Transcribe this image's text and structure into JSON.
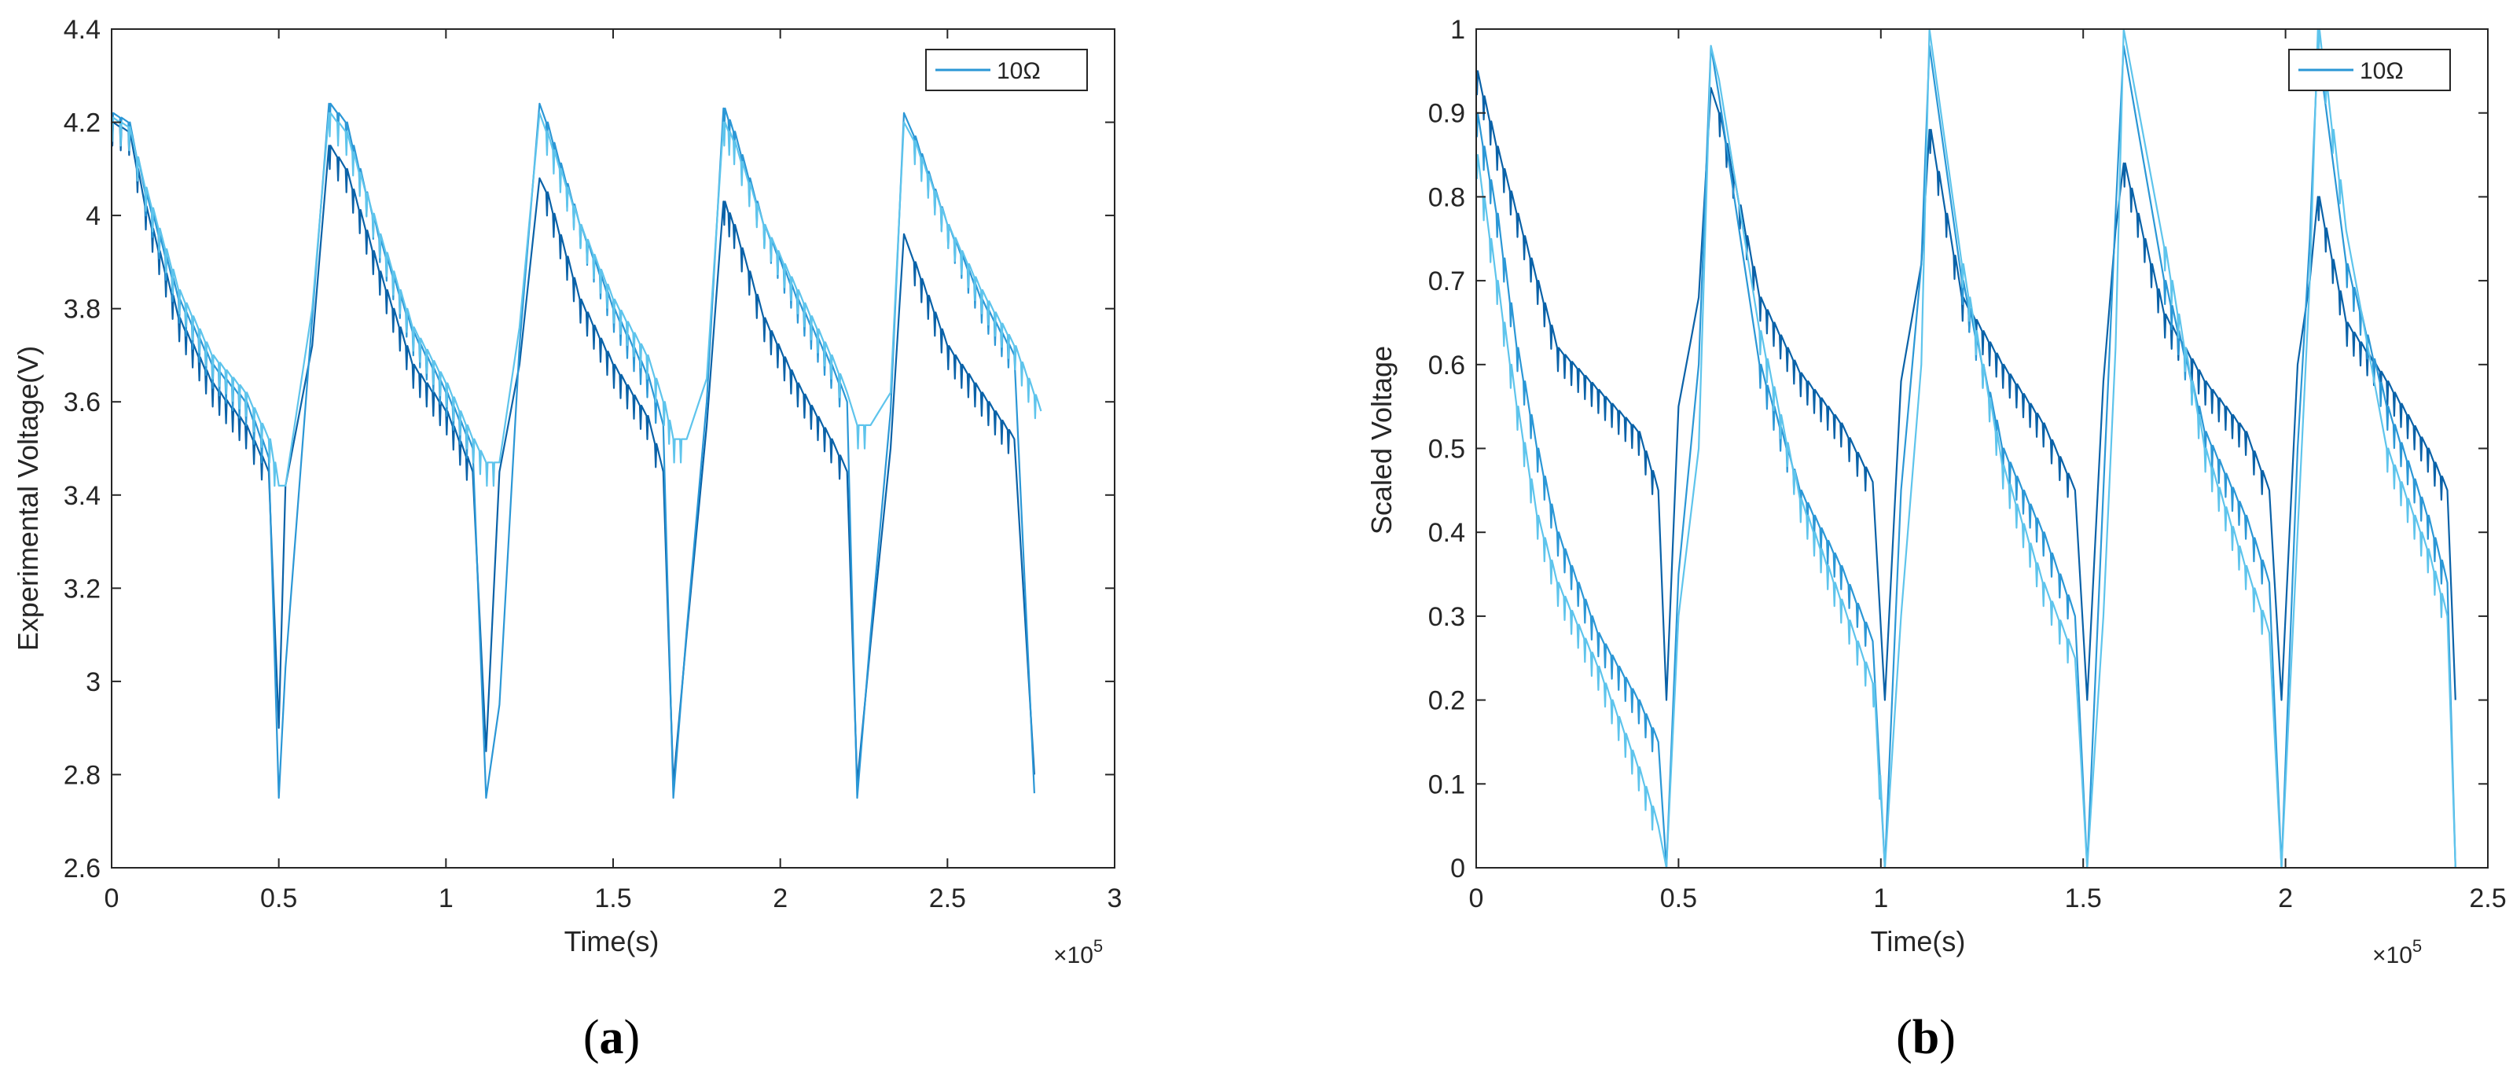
{
  "chart_data": [
    {
      "type": "line",
      "panel": "a",
      "panel_label": "a",
      "xlabel": "Time(s)",
      "ylabel": "Experimental Voltage(V)",
      "x_exponent_label": "×10",
      "x_exponent": "5",
      "xlim": [
        0,
        3
      ],
      "ylim": [
        2.6,
        4.4
      ],
      "xticks": [
        "0",
        "0.5",
        "1",
        "1.5",
        "2",
        "2.5",
        "3"
      ],
      "yticks": [
        "2.6",
        "2.8",
        "3",
        "3.2",
        "3.4",
        "3.6",
        "3.8",
        "4",
        "4.2",
        "4.4"
      ],
      "legend": {
        "entries": [
          "10Ω"
        ],
        "placement": "top-right"
      },
      "series": [
        {
          "name": "dark",
          "color": "#0a62a8",
          "x": [
            0,
            0.05,
            0.1,
            0.2,
            0.3,
            0.4,
            0.47,
            0.5,
            0.52,
            0.6,
            0.65,
            0.7,
            0.8,
            0.9,
            1.0,
            1.08,
            1.12,
            1.16,
            1.22,
            1.28,
            1.3,
            1.4,
            1.5,
            1.6,
            1.65,
            1.68,
            1.72,
            1.78,
            1.83,
            1.86,
            1.95,
            2.05,
            2.15,
            2.2,
            2.23,
            2.27,
            2.33,
            2.37,
            2.4,
            2.5,
            2.6,
            2.7,
            2.76
          ],
          "y": [
            4.2,
            4.18,
            4.02,
            3.78,
            3.64,
            3.55,
            3.45,
            2.9,
            3.42,
            3.72,
            4.15,
            4.1,
            3.88,
            3.68,
            3.58,
            3.45,
            2.85,
            3.45,
            3.68,
            4.08,
            4.05,
            3.82,
            3.68,
            3.57,
            3.45,
            2.78,
            3.1,
            3.55,
            4.03,
            3.98,
            3.78,
            3.64,
            3.52,
            3.45,
            2.78,
            3.08,
            3.5,
            3.96,
            3.9,
            3.72,
            3.62,
            3.52,
            2.8
          ]
        },
        {
          "name": "medium",
          "color": "#2b97d6",
          "x": [
            0,
            0.05,
            0.1,
            0.2,
            0.3,
            0.4,
            0.47,
            0.5,
            0.52,
            0.6,
            0.65,
            0.7,
            0.8,
            0.9,
            1.0,
            1.08,
            1.12,
            1.16,
            1.22,
            1.28,
            1.3,
            1.4,
            1.5,
            1.6,
            1.65,
            1.68,
            1.72,
            1.78,
            1.83,
            1.86,
            1.95,
            2.05,
            2.15,
            2.2,
            2.23,
            2.27,
            2.33,
            2.37,
            2.4,
            2.5,
            2.6,
            2.7,
            2.76
          ],
          "y": [
            4.22,
            4.2,
            4.05,
            3.82,
            3.68,
            3.6,
            3.48,
            2.75,
            3.03,
            3.78,
            4.24,
            4.2,
            3.95,
            3.75,
            3.62,
            3.5,
            2.75,
            2.95,
            3.72,
            4.24,
            4.2,
            3.98,
            3.8,
            3.66,
            3.55,
            2.75,
            3.11,
            3.6,
            4.23,
            4.18,
            3.98,
            3.82,
            3.68,
            3.6,
            2.75,
            3.1,
            3.58,
            4.22,
            4.17,
            3.98,
            3.82,
            3.7,
            2.76
          ]
        },
        {
          "name": "light",
          "color": "#5ec4ec",
          "x": [
            0,
            0.05,
            0.1,
            0.2,
            0.3,
            0.4,
            0.47,
            0.5,
            0.52,
            0.6,
            0.65,
            0.7,
            0.8,
            0.9,
            1.0,
            1.08,
            1.12,
            1.16,
            1.22,
            1.28,
            1.3,
            1.4,
            1.5,
            1.6,
            1.65,
            1.68,
            1.72,
            1.78,
            1.83,
            1.86,
            1.95,
            2.05,
            2.15,
            2.2,
            2.23,
            2.27,
            2.33,
            2.37,
            2.4,
            2.5,
            2.6,
            2.7,
            2.78
          ],
          "y": [
            4.21,
            4.19,
            4.06,
            3.84,
            3.7,
            3.62,
            3.52,
            3.42,
            3.42,
            3.8,
            4.22,
            4.18,
            3.96,
            3.76,
            3.64,
            3.52,
            3.47,
            3.47,
            3.76,
            4.22,
            4.18,
            3.98,
            3.82,
            3.7,
            3.6,
            3.52,
            3.52,
            3.65,
            4.2,
            4.16,
            3.98,
            3.84,
            3.7,
            3.62,
            3.55,
            3.55,
            3.62,
            4.2,
            4.16,
            3.98,
            3.84,
            3.72,
            3.58
          ]
        }
      ]
    },
    {
      "type": "line",
      "panel": "b",
      "panel_label": "b",
      "xlabel": "Time(s)",
      "ylabel": "Scaled Voltage",
      "x_exponent_label": "×10",
      "x_exponent": "5",
      "xlim": [
        0,
        2.5
      ],
      "ylim": [
        0,
        1
      ],
      "xticks": [
        "0",
        "0.5",
        "1",
        "1.5",
        "2",
        "2.5"
      ],
      "yticks": [
        "0",
        "0.1",
        "0.2",
        "0.3",
        "0.4",
        "0.5",
        "0.6",
        "0.7",
        "0.8",
        "0.9",
        "1"
      ],
      "legend": {
        "entries": [
          "10Ω"
        ],
        "placement": "top-right"
      },
      "series": [
        {
          "name": "dark",
          "color": "#0a62a8",
          "x": [
            0,
            0.05,
            0.1,
            0.15,
            0.2,
            0.3,
            0.4,
            0.45,
            0.47,
            0.5,
            0.55,
            0.58,
            0.6,
            0.7,
            0.8,
            0.9,
            0.98,
            1.01,
            1.05,
            1.1,
            1.12,
            1.2,
            1.3,
            1.4,
            1.48,
            1.51,
            1.55,
            1.58,
            1.6,
            1.7,
            1.8,
            1.9,
            1.96,
            1.99,
            2.03,
            2.06,
            2.08,
            2.15,
            2.25,
            2.35,
            2.4,
            2.42
          ],
          "y": [
            0.95,
            0.86,
            0.78,
            0.7,
            0.62,
            0.57,
            0.52,
            0.45,
            0.2,
            0.55,
            0.68,
            0.93,
            0.9,
            0.68,
            0.59,
            0.53,
            0.46,
            0.2,
            0.58,
            0.72,
            0.88,
            0.68,
            0.6,
            0.53,
            0.45,
            0.2,
            0.58,
            0.76,
            0.84,
            0.66,
            0.58,
            0.52,
            0.45,
            0.2,
            0.6,
            0.7,
            0.8,
            0.65,
            0.58,
            0.5,
            0.45,
            0.2
          ]
        },
        {
          "name": "medium",
          "color": "#2b97d6",
          "x": [
            0,
            0.05,
            0.1,
            0.15,
            0.2,
            0.3,
            0.4,
            0.45,
            0.47,
            0.5,
            0.55,
            0.58,
            0.6,
            0.7,
            0.8,
            0.9,
            0.98,
            1.01,
            1.05,
            1.1,
            1.12,
            1.2,
            1.3,
            1.4,
            1.48,
            1.51,
            1.55,
            1.58,
            1.6,
            1.7,
            1.8,
            1.9,
            1.96,
            1.99,
            2.03,
            2.06,
            2.08,
            2.15,
            2.25,
            2.35,
            2.4,
            2.42
          ],
          "y": [
            0.9,
            0.78,
            0.62,
            0.5,
            0.4,
            0.28,
            0.2,
            0.15,
            0.0,
            0.35,
            0.6,
            0.98,
            0.92,
            0.6,
            0.45,
            0.36,
            0.27,
            0.0,
            0.45,
            0.72,
            0.98,
            0.7,
            0.5,
            0.4,
            0.3,
            0.0,
            0.45,
            0.78,
            0.98,
            0.7,
            0.52,
            0.42,
            0.34,
            0.0,
            0.5,
            0.75,
            0.98,
            0.72,
            0.55,
            0.42,
            0.34,
            0.0
          ]
        },
        {
          "name": "light",
          "color": "#5ec4ec",
          "x": [
            0,
            0.05,
            0.1,
            0.15,
            0.2,
            0.3,
            0.4,
            0.45,
            0.47,
            0.5,
            0.55,
            0.58,
            0.6,
            0.7,
            0.8,
            0.9,
            0.98,
            1.01,
            1.05,
            1.1,
            1.12,
            1.2,
            1.3,
            1.4,
            1.48,
            1.51,
            1.55,
            1.58,
            1.6,
            1.7,
            1.8,
            1.9,
            1.96,
            1.99,
            2.03,
            2.06,
            2.08,
            2.15,
            2.25,
            2.35,
            2.4,
            2.42
          ],
          "y": [
            0.85,
            0.7,
            0.55,
            0.42,
            0.34,
            0.24,
            0.12,
            0.05,
            0.0,
            0.3,
            0.5,
            0.98,
            0.94,
            0.64,
            0.44,
            0.32,
            0.22,
            0.0,
            0.3,
            0.6,
            1.0,
            0.72,
            0.48,
            0.34,
            0.25,
            0.0,
            0.3,
            0.62,
            1.0,
            0.74,
            0.5,
            0.36,
            0.28,
            0.0,
            0.4,
            0.7,
            1.0,
            0.76,
            0.5,
            0.38,
            0.3,
            0.0
          ]
        }
      ]
    }
  ]
}
